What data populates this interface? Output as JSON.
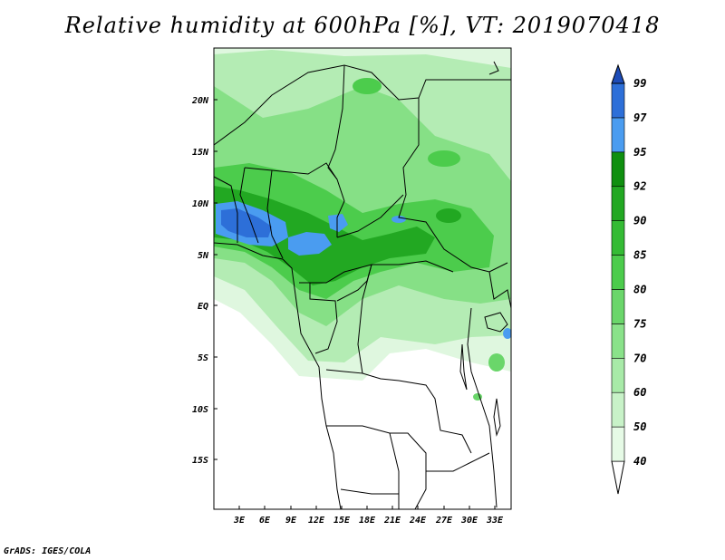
{
  "title": "Relative humidity at 600hPa [%], VT: 2019070418",
  "credit": "GrADS: IGES/COLA",
  "map": {
    "lat_labels": [
      "20N",
      "15N",
      "10N",
      "5N",
      "EQ",
      "5S",
      "10S",
      "15S"
    ],
    "lon_labels": [
      "3E",
      "6E",
      "9E",
      "12E",
      "15E",
      "18E",
      "21E",
      "24E",
      "27E",
      "30E",
      "33E"
    ]
  },
  "colorbar": {
    "levels": [
      "40",
      "50",
      "60",
      "70",
      "75",
      "80",
      "85",
      "90",
      "92",
      "95",
      "97",
      "99"
    ],
    "colors": [
      "#ffffff",
      "#e6fae6",
      "#c8f2c8",
      "#a8eaa8",
      "#8ae28a",
      "#6ad66a",
      "#4ccc4c",
      "#34bb34",
      "#22a822",
      "#0f8f0f",
      "#4a9cf0",
      "#2d6fd8",
      "#1d4cb8"
    ]
  }
}
